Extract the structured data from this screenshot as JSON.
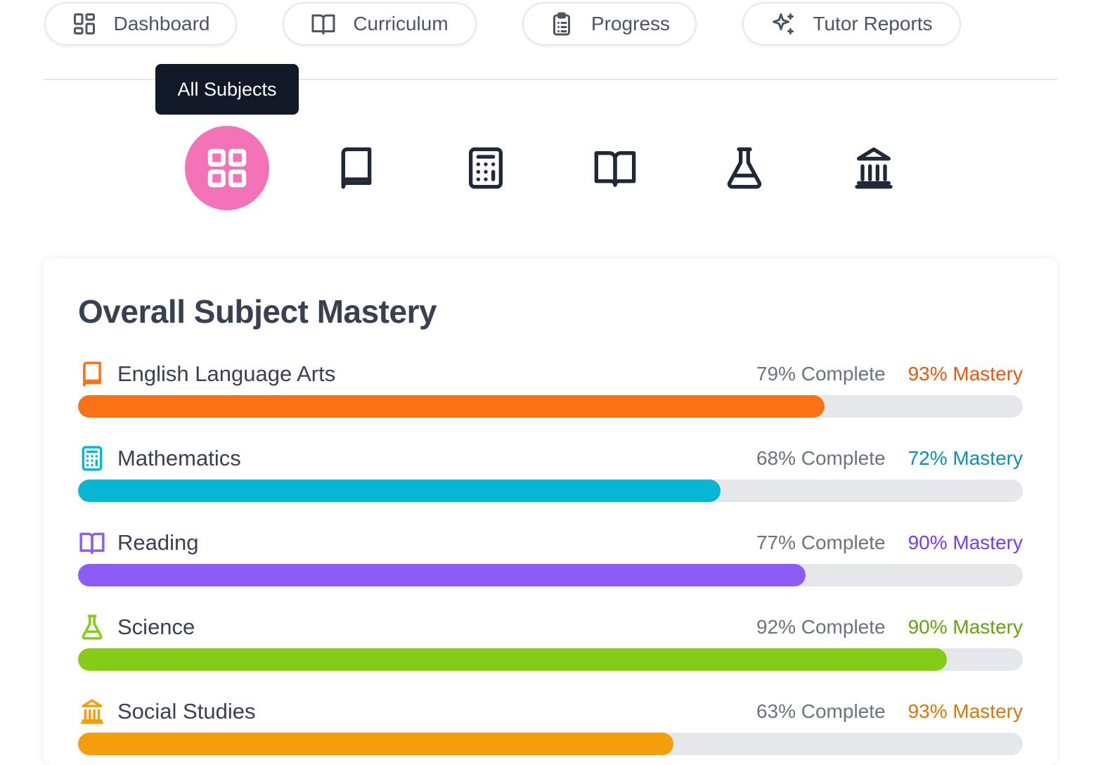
{
  "nav": {
    "tabs": [
      {
        "label": "Dashboard",
        "icon": "dashboard-grid-icon"
      },
      {
        "label": "Curriculum",
        "icon": "open-book-icon"
      },
      {
        "label": "Progress",
        "icon": "clipboard-list-icon"
      },
      {
        "label": "Tutor Reports",
        "icon": "sparkles-icon"
      }
    ]
  },
  "tooltip": {
    "label": "All Subjects"
  },
  "subject_filter": {
    "items": [
      {
        "name": "all-subjects",
        "icon": "grid-icon",
        "active": true
      },
      {
        "name": "english-language-arts",
        "icon": "book-icon",
        "active": false
      },
      {
        "name": "mathematics",
        "icon": "calculator-icon",
        "active": false
      },
      {
        "name": "reading",
        "icon": "open-book-icon",
        "active": false
      },
      {
        "name": "science",
        "icon": "flask-icon",
        "active": false
      },
      {
        "name": "social-studies",
        "icon": "landmark-icon",
        "active": false
      }
    ],
    "active_color": "#f472b6"
  },
  "mastery": {
    "title": "Overall Subject Mastery",
    "subjects": [
      {
        "label": "English Language Arts",
        "complete": "79% Complete",
        "mastery": "93% Mastery",
        "progress": 0.79,
        "color": "#f97316",
        "icon": "book-icon"
      },
      {
        "label": "Mathematics",
        "complete": "68% Complete",
        "mastery": "72% Mastery",
        "progress": 0.68,
        "color": "#06b6d4",
        "icon": "calculator-icon"
      },
      {
        "label": "Reading",
        "complete": "77% Complete",
        "mastery": "90% Mastery",
        "progress": 0.77,
        "color": "#8b5cf6",
        "icon": "open-book-icon"
      },
      {
        "label": "Science",
        "complete": "92% Complete",
        "mastery": "90% Mastery",
        "progress": 0.92,
        "color": "#84cc16",
        "icon": "flask-icon"
      },
      {
        "label": "Social Studies",
        "complete": "63% Complete",
        "mastery": "93% Mastery",
        "progress": 0.63,
        "color": "#f59e0b",
        "icon": "landmark-icon"
      }
    ],
    "mastery_colors": [
      "#ea580c",
      "#0891b2",
      "#7c3aed",
      "#65a30d",
      "#d97706"
    ]
  }
}
